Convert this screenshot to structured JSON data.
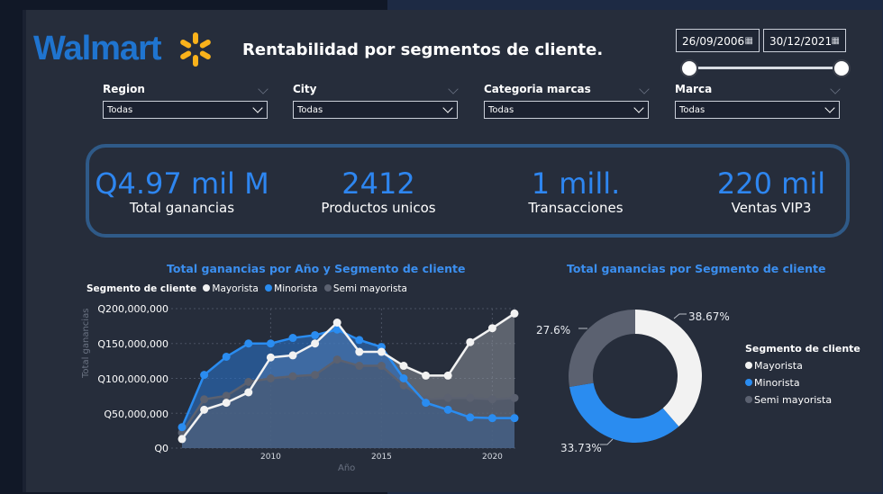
{
  "header": {
    "brand": "Walmart",
    "title": "Rentabilidad por segmentos de cliente.",
    "date_start": "26/09/2006",
    "date_end": "30/12/2021"
  },
  "slicers": [
    {
      "label": "Region",
      "value": "Todas"
    },
    {
      "label": "City",
      "value": "Todas"
    },
    {
      "label": "Categoria marcas",
      "value": "Todas"
    },
    {
      "label": "Marca",
      "value": "Todas"
    }
  ],
  "kpis": [
    {
      "value": "Q4.97 mil M",
      "caption": "Total ganancias"
    },
    {
      "value": "2412",
      "caption": "Productos unicos"
    },
    {
      "value": "1 mill.",
      "caption": "Transacciones"
    },
    {
      "value": "220 mil",
      "caption": "Ventas VIP3"
    }
  ],
  "colors": {
    "mayorista": "#f2f2f2",
    "minorista": "#2a8cf0",
    "semi_mayorista": "#5b6170",
    "accent": "#2e86f0"
  },
  "chart_data": [
    {
      "type": "area",
      "title": "Total ganancias por Año y Segmento de cliente",
      "legend_title": "Segmento de cliente",
      "xlabel": "Año",
      "ylabel": "Total ganancias",
      "x": [
        2006,
        2007,
        2008,
        2009,
        2010,
        2011,
        2012,
        2013,
        2014,
        2015,
        2016,
        2017,
        2018,
        2019,
        2020,
        2021
      ],
      "x_ticks": [
        "2010",
        "2015",
        "2020"
      ],
      "y_ticks": [
        "Q200,000,000",
        "Q150,000,000",
        "Q100,000,000",
        "Q50,000,000",
        "Q0"
      ],
      "ylim": [
        0,
        200000000
      ],
      "series": [
        {
          "name": "Mayorista",
          "values": [
            13000000,
            55000000,
            65000000,
            80000000,
            130000000,
            133000000,
            150000000,
            180000000,
            138000000,
            138000000,
            118000000,
            104000000,
            104000000,
            152000000,
            172000000,
            193000000
          ]
        },
        {
          "name": "Minorista",
          "values": [
            30000000,
            105000000,
            131000000,
            150000000,
            150000000,
            158000000,
            162000000,
            170000000,
            155000000,
            145000000,
            100000000,
            65000000,
            55000000,
            44000000,
            43000000,
            43000000
          ]
        },
        {
          "name": "Semi mayorista",
          "values": [
            22000000,
            70000000,
            75000000,
            95000000,
            100000000,
            103000000,
            105000000,
            127000000,
            118000000,
            118000000,
            90000000,
            70000000,
            72000000,
            72000000,
            70000000,
            72000000
          ]
        }
      ]
    },
    {
      "type": "pie",
      "title": "Total ganancias por Segmento de cliente",
      "legend_title": "Segmento de cliente",
      "categories": [
        "Mayorista",
        "Minorista",
        "Semi mayorista"
      ],
      "values": [
        38.67,
        33.73,
        27.6
      ],
      "labels": [
        "38.67%",
        "33.73%",
        "27.6%"
      ]
    }
  ]
}
